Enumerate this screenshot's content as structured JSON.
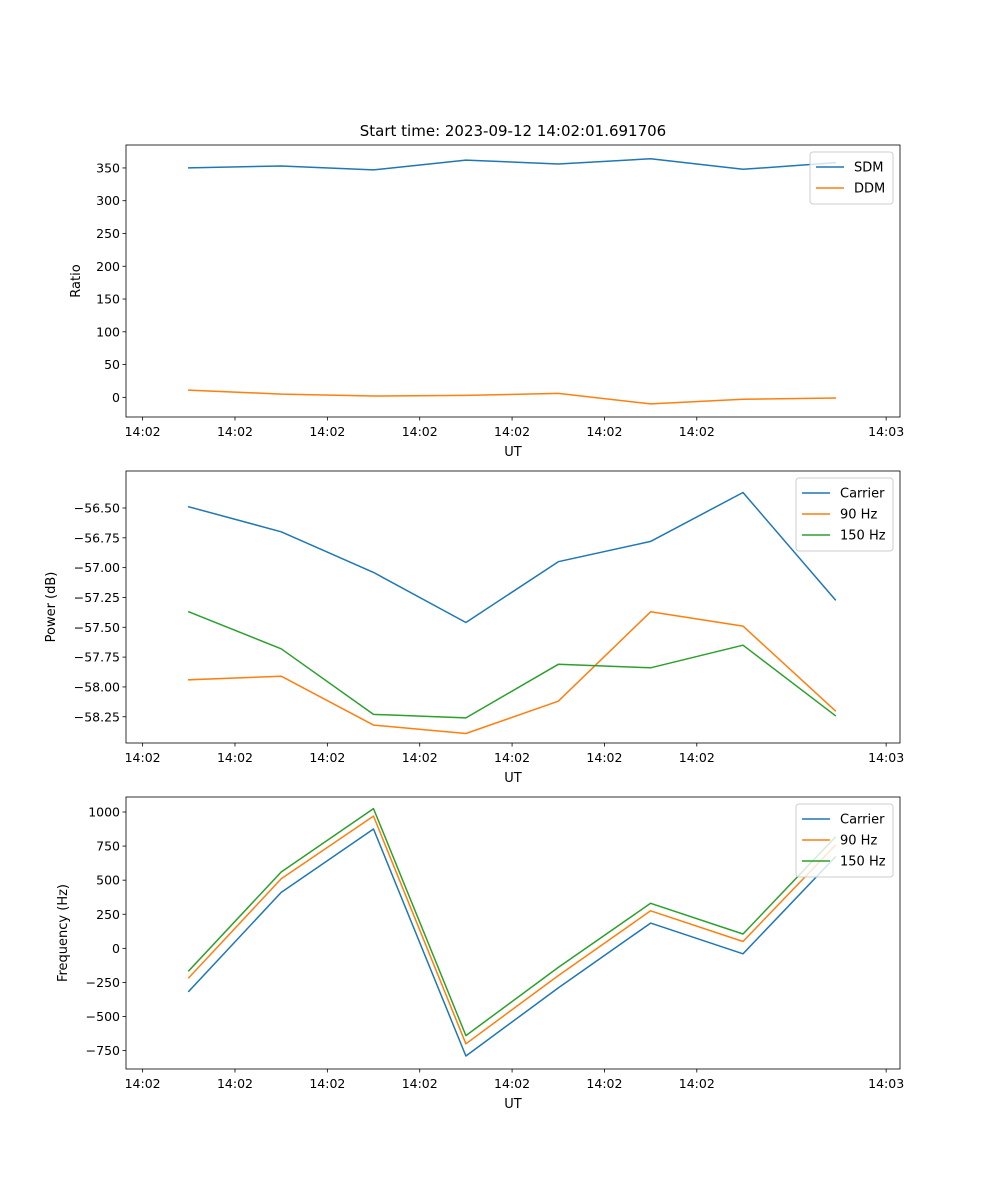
{
  "figure_title": "Start time: 2023-09-12 14:02:01.691706",
  "colors": {
    "blue": "#1f77b4",
    "orange": "#ff7f0e",
    "green": "#2ca02c"
  },
  "chart_data": [
    {
      "type": "line",
      "ylabel": "Ratio",
      "xlabel": "UT",
      "ylim": [
        -30,
        385
      ],
      "yticks": [
        0,
        50,
        100,
        150,
        200,
        250,
        300,
        350
      ],
      "ytick_labels": [
        "0",
        "50",
        "100",
        "150",
        "200",
        "250",
        "300",
        "350"
      ],
      "xlim": [
        -0.18,
        8.2
      ],
      "xtick_labels": [
        "14:02",
        "14:02",
        "14:02",
        "14:02",
        "14:02",
        "14:02",
        "14:02",
        "14:03"
      ],
      "x": [
        0.5,
        1.5,
        2.5,
        3.5,
        4.5,
        5.5,
        6.5,
        7.5
      ],
      "legend_loc": "upper right",
      "series": [
        {
          "name": "SDM",
          "color_key": "blue",
          "values": [
            350,
            353,
            347,
            362,
            356,
            364,
            348,
            358
          ]
        },
        {
          "name": "DDM",
          "color_key": "orange",
          "values": [
            11,
            5,
            2,
            3,
            6,
            -10,
            -3,
            -1
          ]
        }
      ]
    },
    {
      "type": "line",
      "ylabel": "Power (dB)",
      "xlabel": "UT",
      "ylim": [
        -58.47,
        -56.19
      ],
      "yticks": [
        -58.25,
        -58.0,
        -57.75,
        -57.5,
        -57.25,
        -57.0,
        -56.75,
        -56.5
      ],
      "ytick_labels": [
        "−58.25",
        "−58.00",
        "−57.75",
        "−57.50",
        "−57.25",
        "−57.00",
        "−56.75",
        "−56.50"
      ],
      "xlim": [
        -0.18,
        8.2
      ],
      "xtick_labels": [
        "14:02",
        "14:02",
        "14:02",
        "14:02",
        "14:02",
        "14:02",
        "14:02",
        "14:03"
      ],
      "x": [
        0.5,
        1.5,
        2.5,
        3.5,
        4.5,
        5.5,
        6.5,
        7.5
      ],
      "legend_loc": "upper right",
      "series": [
        {
          "name": "Carrier",
          "color_key": "blue",
          "values": [
            -56.49,
            -56.7,
            -57.04,
            -57.46,
            -56.95,
            -56.78,
            -56.37,
            -57.27
          ]
        },
        {
          "name": "90 Hz",
          "color_key": "orange",
          "values": [
            -57.94,
            -57.91,
            -58.32,
            -58.39,
            -58.12,
            -57.37,
            -57.49,
            -58.2
          ]
        },
        {
          "name": "150 Hz",
          "color_key": "green",
          "values": [
            -57.37,
            -57.68,
            -58.23,
            -58.26,
            -57.81,
            -57.84,
            -57.65,
            -58.24
          ]
        }
      ]
    },
    {
      "type": "line",
      "ylabel": "Frequency (Hz)",
      "xlabel": "UT",
      "ylim": [
        -885,
        1110
      ],
      "yticks": [
        -750,
        -500,
        -250,
        0,
        250,
        500,
        750,
        1000
      ],
      "ytick_labels": [
        "−750",
        "−500",
        "−250",
        "0",
        "250",
        "500",
        "750",
        "1000"
      ],
      "xlim": [
        -0.18,
        8.2
      ],
      "xtick_labels": [
        "14:02",
        "14:02",
        "14:02",
        "14:02",
        "14:02",
        "14:02",
        "14:02",
        "14:03"
      ],
      "x": [
        0.5,
        1.5,
        2.5,
        3.5,
        4.5,
        5.5,
        6.5,
        7.5
      ],
      "legend_loc": "upper right",
      "series": [
        {
          "name": "Carrier",
          "color_key": "blue",
          "values": [
            -315,
            410,
            875,
            -790,
            -290,
            185,
            -40,
            670
          ]
        },
        {
          "name": "90 Hz",
          "color_key": "orange",
          "values": [
            -215,
            510,
            970,
            -700,
            -200,
            275,
            50,
            755
          ]
        },
        {
          "name": "150 Hz",
          "color_key": "green",
          "values": [
            -165,
            560,
            1025,
            -640,
            -140,
            330,
            105,
            815
          ]
        }
      ]
    }
  ]
}
